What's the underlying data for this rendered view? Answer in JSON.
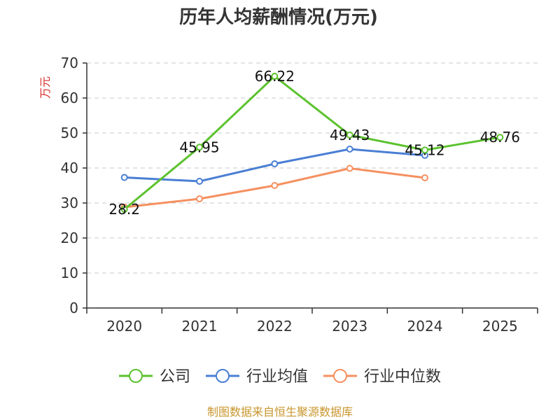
{
  "chart_data": {
    "type": "line",
    "title": "历年人均薪酬情况(万元)",
    "ylabel": "万元",
    "xlabel": "",
    "categories": [
      "2020",
      "2021",
      "2022",
      "2023",
      "2024",
      "2025"
    ],
    "ylim": [
      0,
      70
    ],
    "yticks": [
      0,
      10,
      20,
      30,
      40,
      50,
      60,
      70
    ],
    "grid": true,
    "legend_position": "bottom",
    "series": [
      {
        "name": "公司",
        "color": "#5cc22e",
        "values": [
          28.2,
          45.95,
          66.22,
          49.43,
          45.12,
          48.76
        ],
        "labels": [
          "28.2",
          "45.95",
          "66.22",
          "49.43",
          "45.12",
          "48.76"
        ]
      },
      {
        "name": "行业均值",
        "color": "#4a7fd4",
        "values": [
          37.3,
          36.2,
          41.2,
          45.4,
          43.6,
          null
        ]
      },
      {
        "name": "行业中位数",
        "color": "#f59060",
        "values": [
          28.8,
          31.2,
          35.0,
          39.9,
          37.2,
          null
        ]
      }
    ],
    "source": "制图数据来自恒生聚源数据库"
  },
  "colors": {
    "ylabel": "#d9302c",
    "source": "#c8962d"
  }
}
